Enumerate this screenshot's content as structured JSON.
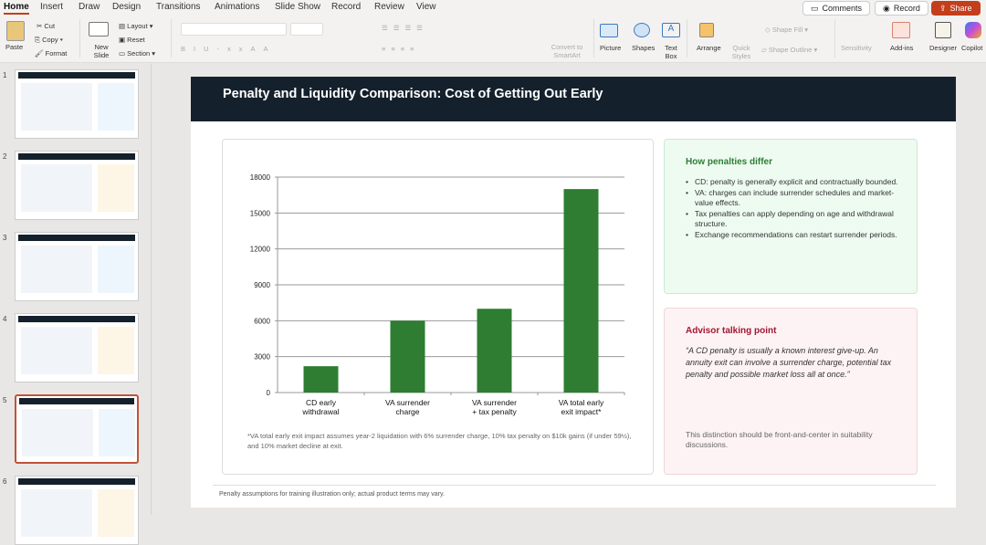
{
  "ribbon": {
    "tabs": [
      "Home",
      "Insert",
      "Draw",
      "Design",
      "Transitions",
      "Animations",
      "Slide Show",
      "Record",
      "Review",
      "View"
    ],
    "active_tab": "Home",
    "comments_label": "Comments",
    "record_label": "Record",
    "share_label": "Share",
    "paste": "Paste",
    "cut": "Cut",
    "copy": "Copy",
    "format": "Format",
    "new_slide": "New Slide",
    "layout": "Layout",
    "reset": "Reset",
    "section": "Section",
    "convert_smartart": "Convert to SmartArt",
    "picture": "Picture",
    "shapes": "Shapes",
    "text_box": "Text Box",
    "arrange": "Arrange",
    "quick_styles": "Quick Styles",
    "shape_fill": "Shape Fill",
    "shape_outline": "Shape Outline",
    "sensitivity": "Sensitivity",
    "add_ins": "Add-ins",
    "designer": "Designer",
    "copilot": "Copilot",
    "share_color": "#c43e1c"
  },
  "thumbnails": {
    "numbers": [
      "1",
      "2",
      "3",
      "4",
      "5",
      "6"
    ],
    "selected": 5
  },
  "slide": {
    "title": "Penalty and Liquidity Comparison: Cost of Getting Out Early",
    "chart_note": "*VA total early exit impact assumes year-2 liquidation with 6% surrender charge, 10% tax penalty on $10k gains (if under 59½), and 10% market decline at exit.",
    "penalties": {
      "title": "How penalties differ",
      "items": [
        "CD: penalty is generally explicit and contractually bounded.",
        "VA: charges can include surrender schedules and market-value effects.",
        "Tax penalties can apply depending on age and withdrawal structure.",
        "Exchange recommendations can restart surrender periods."
      ]
    },
    "advisor": {
      "title": "Advisor talking point",
      "quote": "“A CD penalty is usually a known interest give-up. An annuity exit can involve a surrender charge, potential tax penalty and possible market loss all at once.”",
      "note": "This distinction should be front-and-center in suitability discussions."
    },
    "footer": "Penalty assumptions for training illustration only; actual product terms may vary."
  },
  "chart_data": {
    "type": "bar",
    "categories": [
      "CD early withdrawal",
      "VA surrender charge",
      "VA surrender + tax penalty",
      "VA total early exit impact*"
    ],
    "category_lines": [
      [
        "CD early",
        "withdrawal"
      ],
      [
        "VA surrender",
        "charge"
      ],
      [
        "VA surrender",
        "+ tax penalty"
      ],
      [
        "VA total early",
        "exit impact*"
      ]
    ],
    "values": [
      2200,
      6000,
      7000,
      17000
    ],
    "ylim": [
      0,
      18000
    ],
    "yticks": [
      "0",
      "3000",
      "6000",
      "9000",
      "12000",
      "15000",
      "18000"
    ],
    "grid": true,
    "bar_color": "#2e7d32"
  }
}
